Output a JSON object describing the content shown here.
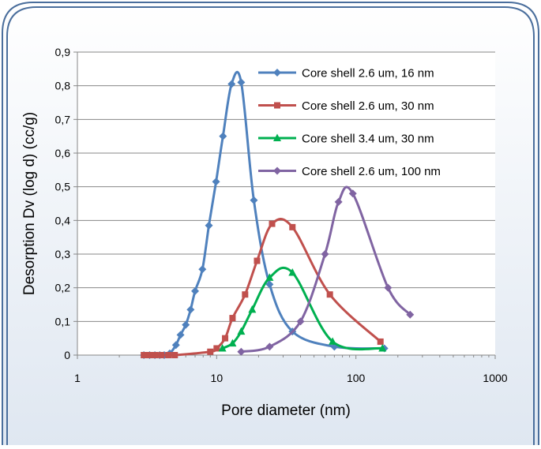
{
  "chart_data": {
    "type": "line",
    "title": "",
    "xlabel": "Pore diameter (nm)",
    "ylabel": "Desorption Dv (log d) (cc/g)",
    "xscale": "log",
    "xlim": [
      1,
      1000
    ],
    "ylim": [
      0,
      0.9
    ],
    "x_ticks": [
      1,
      10,
      100,
      1000
    ],
    "x_tick_labels": [
      "1",
      "10",
      "100",
      "1000"
    ],
    "y_ticks": [
      0,
      0.1,
      0.2,
      0.3,
      0.4,
      0.5,
      0.6,
      0.7,
      0.8,
      0.9
    ],
    "y_tick_labels": [
      "0",
      "0,1",
      "0,2",
      "0,3",
      "0,4",
      "0,5",
      "0,6",
      "0,7",
      "0,8",
      "0,9"
    ],
    "grid": "horizontal",
    "legend_position": "top-right",
    "series": [
      {
        "name": "Core shell 2.6 um, 16 nm",
        "color": "#4f81bd",
        "marker": "diamond",
        "points": [
          [
            3.0,
            0.0
          ],
          [
            3.3,
            0.0
          ],
          [
            3.6,
            0.0
          ],
          [
            3.9,
            0.0
          ],
          [
            4.2,
            0.0
          ],
          [
            4.6,
            0.005
          ],
          [
            5.1,
            0.03
          ],
          [
            5.5,
            0.06
          ],
          [
            6.0,
            0.09
          ],
          [
            6.5,
            0.135
          ],
          [
            7.0,
            0.19
          ],
          [
            7.9,
            0.255
          ],
          [
            8.8,
            0.385
          ],
          [
            9.9,
            0.515
          ],
          [
            11.1,
            0.65
          ],
          [
            12.8,
            0.805
          ],
          [
            15.0,
            0.81
          ],
          [
            18.5,
            0.46
          ],
          [
            24.0,
            0.21
          ],
          [
            35.0,
            0.07
          ],
          [
            70.0,
            0.025
          ],
          [
            160.0,
            0.02
          ]
        ]
      },
      {
        "name": "Core shell 2.6 um, 30 nm",
        "color": "#c0504d",
        "marker": "square",
        "points": [
          [
            3.0,
            0.0
          ],
          [
            3.3,
            0.0
          ],
          [
            3.6,
            0.0
          ],
          [
            4.0,
            0.0
          ],
          [
            4.5,
            0.0
          ],
          [
            5.0,
            0.0
          ],
          [
            9.0,
            0.01
          ],
          [
            10.0,
            0.02
          ],
          [
            11.5,
            0.05
          ],
          [
            13.0,
            0.11
          ],
          [
            16.0,
            0.18
          ],
          [
            19.5,
            0.28
          ],
          [
            25.0,
            0.39
          ],
          [
            35.0,
            0.38
          ],
          [
            65.0,
            0.18
          ],
          [
            150.0,
            0.04
          ]
        ]
      },
      {
        "name": "Core shell 3.4 um, 30 nm",
        "color": "#00b050",
        "marker": "triangle",
        "points": [
          [
            11.0,
            0.02
          ],
          [
            13.0,
            0.035
          ],
          [
            15.0,
            0.07
          ],
          [
            18.0,
            0.135
          ],
          [
            24.0,
            0.23
          ],
          [
            35.0,
            0.245
          ],
          [
            68.0,
            0.04
          ],
          [
            155.0,
            0.02
          ]
        ]
      },
      {
        "name": "Core shell 2.6 um, 100 nm",
        "color": "#8064a2",
        "marker": "diamond",
        "points": [
          [
            15.0,
            0.01
          ],
          [
            24.0,
            0.025
          ],
          [
            40.0,
            0.1
          ],
          [
            60.0,
            0.3
          ],
          [
            75.0,
            0.455
          ],
          [
            95.0,
            0.48
          ],
          [
            170.0,
            0.2
          ],
          [
            245.0,
            0.12
          ]
        ]
      }
    ]
  }
}
